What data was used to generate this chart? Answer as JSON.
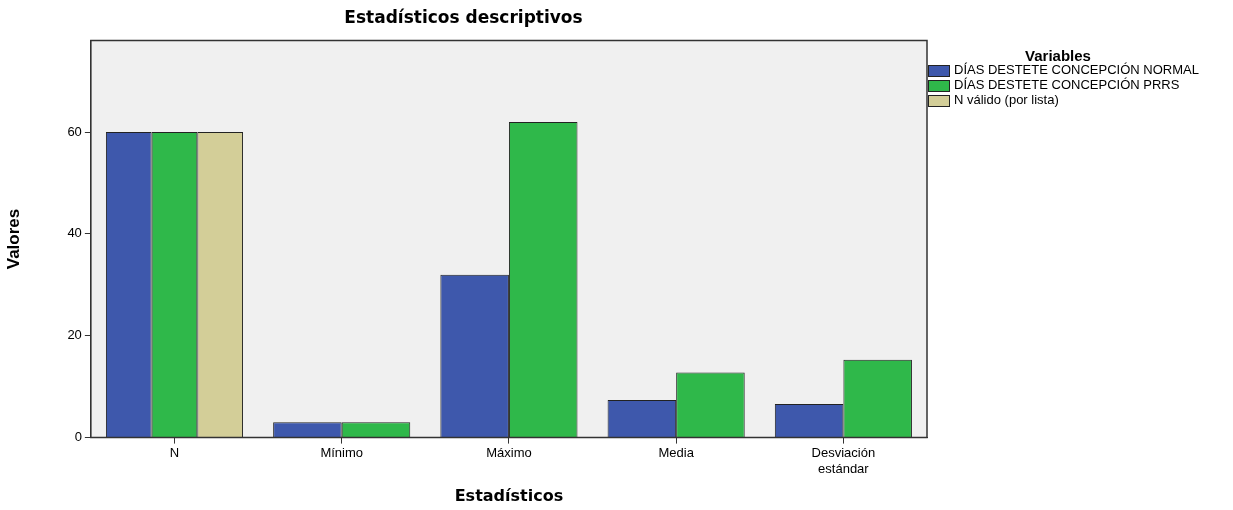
{
  "chart_data": {
    "type": "bar",
    "title": "Estadísticos descriptivos",
    "xlabel": "Estadísticos",
    "ylabel": "Valores",
    "legend_title": "Variables",
    "categories": [
      "N",
      "Mínimo",
      "Máximo",
      "Media",
      "Desviación estándar"
    ],
    "series": [
      {
        "name": "DÍAS DESTETE CONCEPCIÓN NORMAL",
        "color": "#3e58ac",
        "values": [
          60,
          3,
          32,
          7.4,
          6.6
        ]
      },
      {
        "name": "DÍAS DESTETE CONCEPCIÓN PRRS",
        "color": "#2fb84a",
        "values": [
          60,
          3,
          62,
          12.8,
          15.3
        ]
      },
      {
        "name": "N válido (por lista)",
        "color": "#d3ce98",
        "values": [
          60,
          null,
          null,
          null,
          null
        ]
      }
    ],
    "ylim": [
      0,
      78
    ],
    "yticks": [
      0,
      20,
      40,
      60
    ],
    "grid": false,
    "legend": "right"
  }
}
